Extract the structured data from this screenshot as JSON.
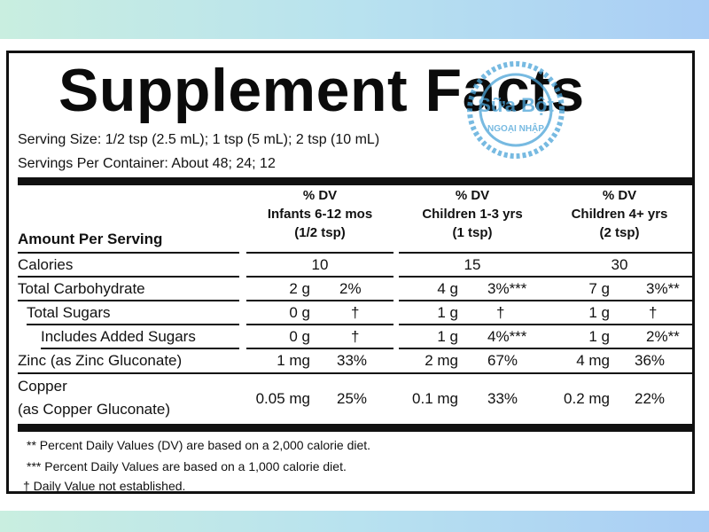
{
  "title": "Supplement Facts",
  "serving_size": "Serving Size: 1/2 tsp (2.5 mL); 1 tsp (5 mL); 2 tsp (10 mL)",
  "servings_per_container": "Servings Per Container: About 48; 24; 12",
  "amount_per_serving": "Amount Per Serving",
  "columns": [
    {
      "line1": "% DV",
      "line2": "Infants 6-12 mos",
      "line3": "(1/2 tsp)"
    },
    {
      "line1": "% DV",
      "line2": "Children 1-3 yrs",
      "line3": "(1 tsp)"
    },
    {
      "line1": "% DV",
      "line2": "Children 4+ yrs",
      "line3": "(2 tsp)"
    }
  ],
  "rows": {
    "calories": {
      "label": "Calories",
      "values": [
        "10",
        "15",
        "30"
      ]
    },
    "total_carbohydrate": {
      "label": "Total Carbohydrate",
      "amounts": [
        "2 g",
        "4 g",
        "7 g"
      ],
      "dv": [
        "2%",
        "3%***",
        "3%**"
      ]
    },
    "total_sugars": {
      "label": "Total Sugars",
      "amounts": [
        "0 g",
        "1 g",
        "1 g"
      ],
      "dv": [
        "†",
        "†",
        "†"
      ]
    },
    "added_sugars": {
      "label": "Includes Added Sugars",
      "amounts": [
        "0 g",
        "1 g",
        "1 g"
      ],
      "dv": [
        "†",
        "4%***",
        "2%**"
      ]
    },
    "zinc": {
      "label": "Zinc (as Zinc Gluconate)",
      "amounts": [
        "1 mg",
        "2 mg",
        "4 mg"
      ],
      "dv": [
        "33%",
        "67%",
        "36%"
      ]
    },
    "copper": {
      "label_line1": "Copper",
      "label_line2": "(as Copper Gluconate)",
      "amounts": [
        "0.05 mg",
        "0.1 mg",
        "0.2 mg"
      ],
      "dv": [
        "25%",
        "33%",
        "22%"
      ]
    }
  },
  "footnotes": [
    "** Percent Daily Values (DV) are based on a 2,000 calorie diet.",
    "*** Percent Daily Values are based on a 1,000 calorie diet.",
    "† Daily Value not established."
  ],
  "stamp": {
    "line1": "Sữa Bột",
    "line2": "NGOẠI NHẬP",
    "color": "#4aa3d8"
  }
}
